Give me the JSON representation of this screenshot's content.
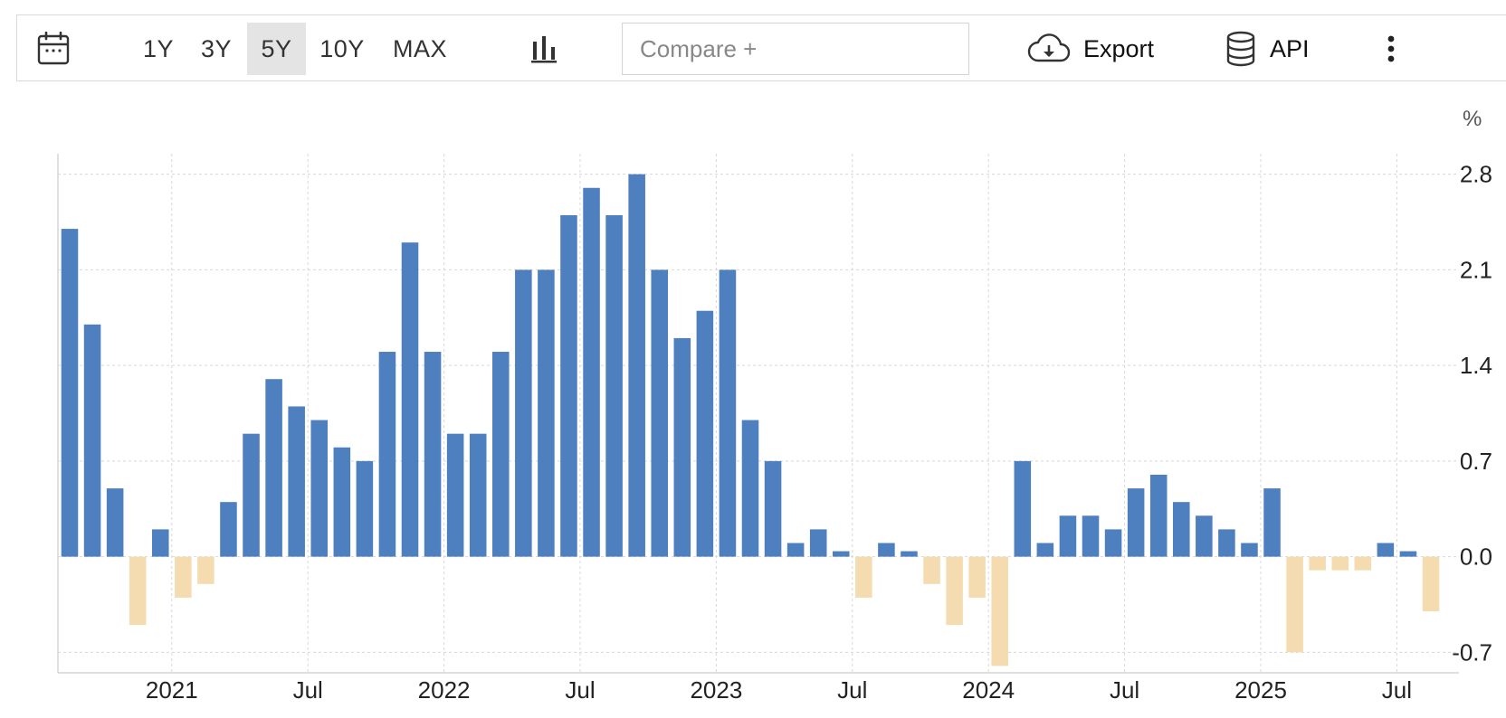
{
  "toolbar": {
    "calendar_icon": "calendar-icon",
    "ranges": [
      {
        "label": "1Y",
        "active": false
      },
      {
        "label": "3Y",
        "active": false
      },
      {
        "label": "5Y",
        "active": true
      },
      {
        "label": "10Y",
        "active": false
      },
      {
        "label": "MAX",
        "active": false
      }
    ],
    "chart_type_icon": "bar-chart-icon",
    "compare_placeholder": "Compare +",
    "export_label": "Export",
    "export_icon": "cloud-download-icon",
    "api_label": "API",
    "api_icon": "database-icon",
    "more_icon": "more-vertical-icon"
  },
  "chart_data": {
    "type": "bar",
    "unit": "%",
    "ylim": [
      -0.85,
      2.95
    ],
    "yticks": [
      2.8,
      2.1,
      1.4,
      0.7,
      0.0,
      -0.7
    ],
    "ytick_labels": [
      "2.8",
      "2.1",
      "1.4",
      "0.7",
      "0.0",
      "-0.7"
    ],
    "grid": true,
    "colors": {
      "positive": "#4e7fbe",
      "negative": "#f5dcb0",
      "grid": "#d8d8d8",
      "axis": "#cccccc",
      "text": "#222222"
    },
    "x_axis_labels": [
      "2021",
      "Jul",
      "2022",
      "Jul",
      "2023",
      "Jul",
      "2024",
      "Jul",
      "2025",
      "Jul"
    ],
    "x_axis_label_month_index": [
      5,
      11,
      17,
      23,
      29,
      35,
      41,
      47,
      53,
      59
    ],
    "months": [
      "2020-08",
      "2020-09",
      "2020-10",
      "2020-11",
      "2020-12",
      "2021-01",
      "2021-02",
      "2021-03",
      "2021-04",
      "2021-05",
      "2021-06",
      "2021-07",
      "2021-08",
      "2021-09",
      "2021-10",
      "2021-11",
      "2021-12",
      "2022-01",
      "2022-02",
      "2022-03",
      "2022-04",
      "2022-05",
      "2022-06",
      "2022-07",
      "2022-08",
      "2022-09",
      "2022-10",
      "2022-11",
      "2022-12",
      "2023-01",
      "2023-02",
      "2023-03",
      "2023-04",
      "2023-05",
      "2023-06",
      "2023-07",
      "2023-08",
      "2023-09",
      "2023-10",
      "2023-11",
      "2023-12",
      "2024-01",
      "2024-02",
      "2024-03",
      "2024-04",
      "2024-05",
      "2024-06",
      "2024-07",
      "2024-08",
      "2024-09",
      "2024-10",
      "2024-11",
      "2024-12",
      "2025-01",
      "2025-02",
      "2025-03",
      "2025-04",
      "2025-05",
      "2025-06",
      "2025-07",
      "2025-08"
    ],
    "values": [
      2.4,
      1.7,
      0.5,
      -0.5,
      0.2,
      -0.3,
      -0.2,
      0.4,
      0.9,
      1.3,
      1.1,
      1.0,
      0.8,
      0.7,
      1.5,
      2.3,
      1.5,
      0.9,
      0.9,
      1.5,
      2.1,
      2.1,
      2.5,
      2.7,
      2.5,
      2.8,
      2.1,
      1.6,
      1.8,
      2.1,
      1.0,
      0.7,
      0.1,
      0.2,
      0.04,
      -0.3,
      0.1,
      0.04,
      -0.2,
      -0.5,
      -0.3,
      -0.8,
      0.7,
      0.1,
      0.3,
      0.3,
      0.2,
      0.5,
      0.6,
      0.4,
      0.3,
      0.2,
      0.1,
      0.5,
      -0.7,
      -0.1,
      -0.1,
      -0.1,
      0.1,
      0.04,
      -0.4
    ]
  }
}
